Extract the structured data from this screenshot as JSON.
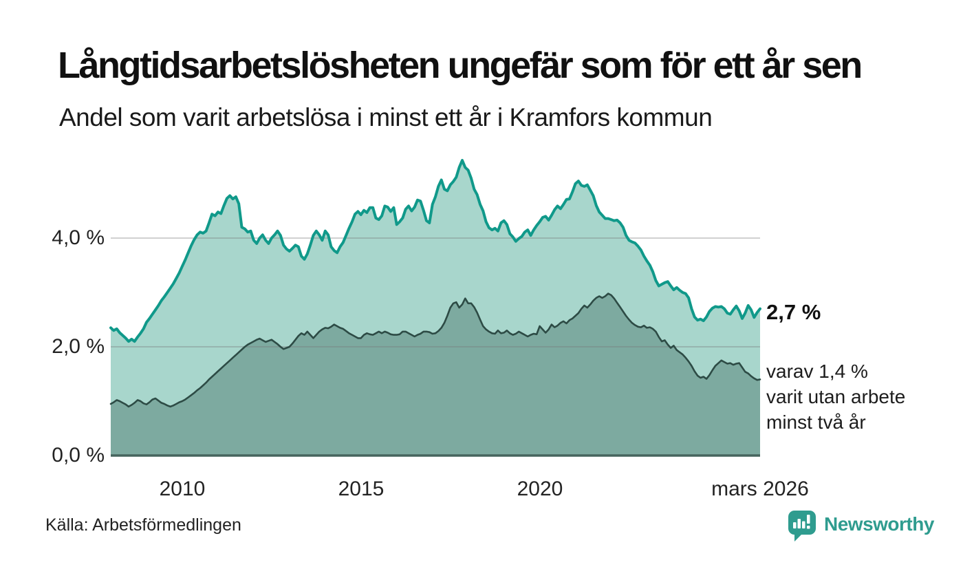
{
  "header": {
    "title": "Långtidsarbetslösheten ungefär som för ett år sen",
    "subtitle": "Andel som varit arbetslösa i minst ett år i Kramfors kommun"
  },
  "annotations": {
    "latest_total": "2,7 %",
    "secondary_line1": "varav 1,4 %",
    "secondary_line2": "varit utan arbete",
    "secondary_line3": "minst två år"
  },
  "footer": {
    "source": "Källa: Arbetsförmedlingen",
    "brand": "Newsworthy"
  },
  "colors": {
    "line_1yr": "#10998a",
    "fill_1yr": "#a8d6cc",
    "line_2yr": "#2d4b45",
    "fill_2yr": "#7daaa0",
    "gridline": "rgba(120,120,120,0.35)",
    "axis_baseline": "#46655e",
    "brand_teal": "#2f9c8f"
  },
  "chart_data": {
    "type": "area",
    "title": "Långtidsarbetslösheten ungefär som för ett år sen",
    "subtitle": "Andel som varit arbetslösa i minst ett år i Kramfors kommun",
    "unit": "%",
    "grid": "horizontal",
    "legend_position": "none",
    "x_start": "2008-01",
    "x_end": "2026-03",
    "x_frequency": "monthly",
    "ylim": [
      0,
      5.6
    ],
    "y_grid_values": [
      4.0,
      2.0,
      0.0
    ],
    "y_tick_labels": [
      "4,0 %",
      "2,0 %",
      "0,0 %"
    ],
    "x_tick_years": [
      2010,
      2015,
      2020,
      2026.17
    ],
    "x_tick_labels": [
      "2010",
      "2015",
      "2020",
      "mars 2026"
    ],
    "latest_values": {
      "minst_ett_ar": 2.7,
      "minst_tva_ar": 1.4
    },
    "series": [
      {
        "name": "Arbetslösa minst ett år",
        "values": [
          2.35,
          2.3,
          2.33,
          2.26,
          2.21,
          2.16,
          2.1,
          2.14,
          2.1,
          2.18,
          2.25,
          2.33,
          2.45,
          2.52,
          2.6,
          2.68,
          2.76,
          2.85,
          2.92,
          3.0,
          3.08,
          3.16,
          3.26,
          3.36,
          3.48,
          3.6,
          3.73,
          3.86,
          3.97,
          4.06,
          4.11,
          4.09,
          4.13,
          4.28,
          4.44,
          4.41,
          4.48,
          4.45,
          4.6,
          4.73,
          4.78,
          4.72,
          4.76,
          4.63,
          4.2,
          4.17,
          4.11,
          4.13,
          3.96,
          3.9,
          4.0,
          4.06,
          3.96,
          3.9,
          4.0,
          4.06,
          4.13,
          4.05,
          3.87,
          3.8,
          3.76,
          3.81,
          3.87,
          3.84,
          3.67,
          3.61,
          3.71,
          3.87,
          4.05,
          4.13,
          4.06,
          3.96,
          4.13,
          4.06,
          3.84,
          3.77,
          3.73,
          3.84,
          3.92,
          4.05,
          4.18,
          4.3,
          4.44,
          4.49,
          4.43,
          4.51,
          4.47,
          4.56,
          4.56,
          4.37,
          4.34,
          4.41,
          4.59,
          4.57,
          4.49,
          4.56,
          4.25,
          4.3,
          4.37,
          4.53,
          4.59,
          4.5,
          4.57,
          4.7,
          4.68,
          4.51,
          4.32,
          4.28,
          4.62,
          4.76,
          4.95,
          5.07,
          4.9,
          4.87,
          4.98,
          5.04,
          5.12,
          5.3,
          5.43,
          5.3,
          5.25,
          5.1,
          4.9,
          4.8,
          4.62,
          4.5,
          4.3,
          4.19,
          4.15,
          4.18,
          4.13,
          4.28,
          4.32,
          4.25,
          4.08,
          4.02,
          3.94,
          3.99,
          4.03,
          4.11,
          4.15,
          4.05,
          4.15,
          4.23,
          4.3,
          4.38,
          4.4,
          4.33,
          4.42,
          4.52,
          4.59,
          4.54,
          4.62,
          4.71,
          4.72,
          4.85,
          5.0,
          5.05,
          4.97,
          4.95,
          4.98,
          4.88,
          4.78,
          4.6,
          4.48,
          4.42,
          4.36,
          4.36,
          4.34,
          4.32,
          4.33,
          4.28,
          4.2,
          4.05,
          3.96,
          3.93,
          3.91,
          3.85,
          3.78,
          3.67,
          3.58,
          3.5,
          3.38,
          3.22,
          3.12,
          3.15,
          3.18,
          3.2,
          3.12,
          3.05,
          3.09,
          3.04,
          3.0,
          2.98,
          2.9,
          2.7,
          2.55,
          2.49,
          2.51,
          2.48,
          2.55,
          2.65,
          2.71,
          2.74,
          2.73,
          2.74,
          2.7,
          2.62,
          2.6,
          2.68,
          2.75,
          2.66,
          2.52,
          2.62,
          2.76,
          2.68,
          2.54,
          2.63,
          2.7
        ]
      },
      {
        "name": "Arbetslösa minst två år",
        "values": [
          0.95,
          0.98,
          1.02,
          1.0,
          0.97,
          0.94,
          0.9,
          0.93,
          0.97,
          1.02,
          1.0,
          0.96,
          0.94,
          0.98,
          1.03,
          1.05,
          1.01,
          0.97,
          0.95,
          0.92,
          0.9,
          0.92,
          0.95,
          0.98,
          1.0,
          1.03,
          1.07,
          1.11,
          1.15,
          1.2,
          1.24,
          1.29,
          1.34,
          1.4,
          1.45,
          1.5,
          1.55,
          1.6,
          1.65,
          1.7,
          1.75,
          1.8,
          1.85,
          1.9,
          1.95,
          2.0,
          2.04,
          2.07,
          2.1,
          2.13,
          2.15,
          2.12,
          2.09,
          2.11,
          2.13,
          2.09,
          2.05,
          2.0,
          1.96,
          1.98,
          2.0,
          2.06,
          2.13,
          2.2,
          2.25,
          2.22,
          2.28,
          2.22,
          2.16,
          2.22,
          2.28,
          2.32,
          2.35,
          2.34,
          2.37,
          2.41,
          2.38,
          2.35,
          2.33,
          2.29,
          2.25,
          2.22,
          2.19,
          2.16,
          2.16,
          2.22,
          2.25,
          2.23,
          2.22,
          2.25,
          2.28,
          2.25,
          2.28,
          2.26,
          2.23,
          2.22,
          2.22,
          2.23,
          2.28,
          2.28,
          2.25,
          2.22,
          2.19,
          2.22,
          2.24,
          2.28,
          2.28,
          2.27,
          2.24,
          2.25,
          2.29,
          2.35,
          2.44,
          2.57,
          2.72,
          2.8,
          2.82,
          2.72,
          2.78,
          2.89,
          2.8,
          2.8,
          2.73,
          2.63,
          2.5,
          2.38,
          2.32,
          2.28,
          2.25,
          2.24,
          2.3,
          2.25,
          2.26,
          2.3,
          2.25,
          2.22,
          2.24,
          2.28,
          2.25,
          2.22,
          2.19,
          2.22,
          2.24,
          2.23,
          2.38,
          2.32,
          2.26,
          2.32,
          2.41,
          2.36,
          2.39,
          2.44,
          2.47,
          2.43,
          2.49,
          2.52,
          2.57,
          2.62,
          2.7,
          2.76,
          2.72,
          2.78,
          2.85,
          2.9,
          2.93,
          2.9,
          2.93,
          2.98,
          2.95,
          2.89,
          2.81,
          2.73,
          2.65,
          2.57,
          2.5,
          2.44,
          2.4,
          2.37,
          2.36,
          2.39,
          2.35,
          2.36,
          2.33,
          2.28,
          2.18,
          2.1,
          2.12,
          2.04,
          1.98,
          2.02,
          1.94,
          1.9,
          1.86,
          1.8,
          1.73,
          1.65,
          1.55,
          1.47,
          1.43,
          1.45,
          1.41,
          1.48,
          1.57,
          1.65,
          1.7,
          1.75,
          1.72,
          1.69,
          1.7,
          1.67,
          1.69,
          1.7,
          1.62,
          1.54,
          1.51,
          1.46,
          1.42,
          1.39,
          1.4
        ]
      }
    ]
  }
}
